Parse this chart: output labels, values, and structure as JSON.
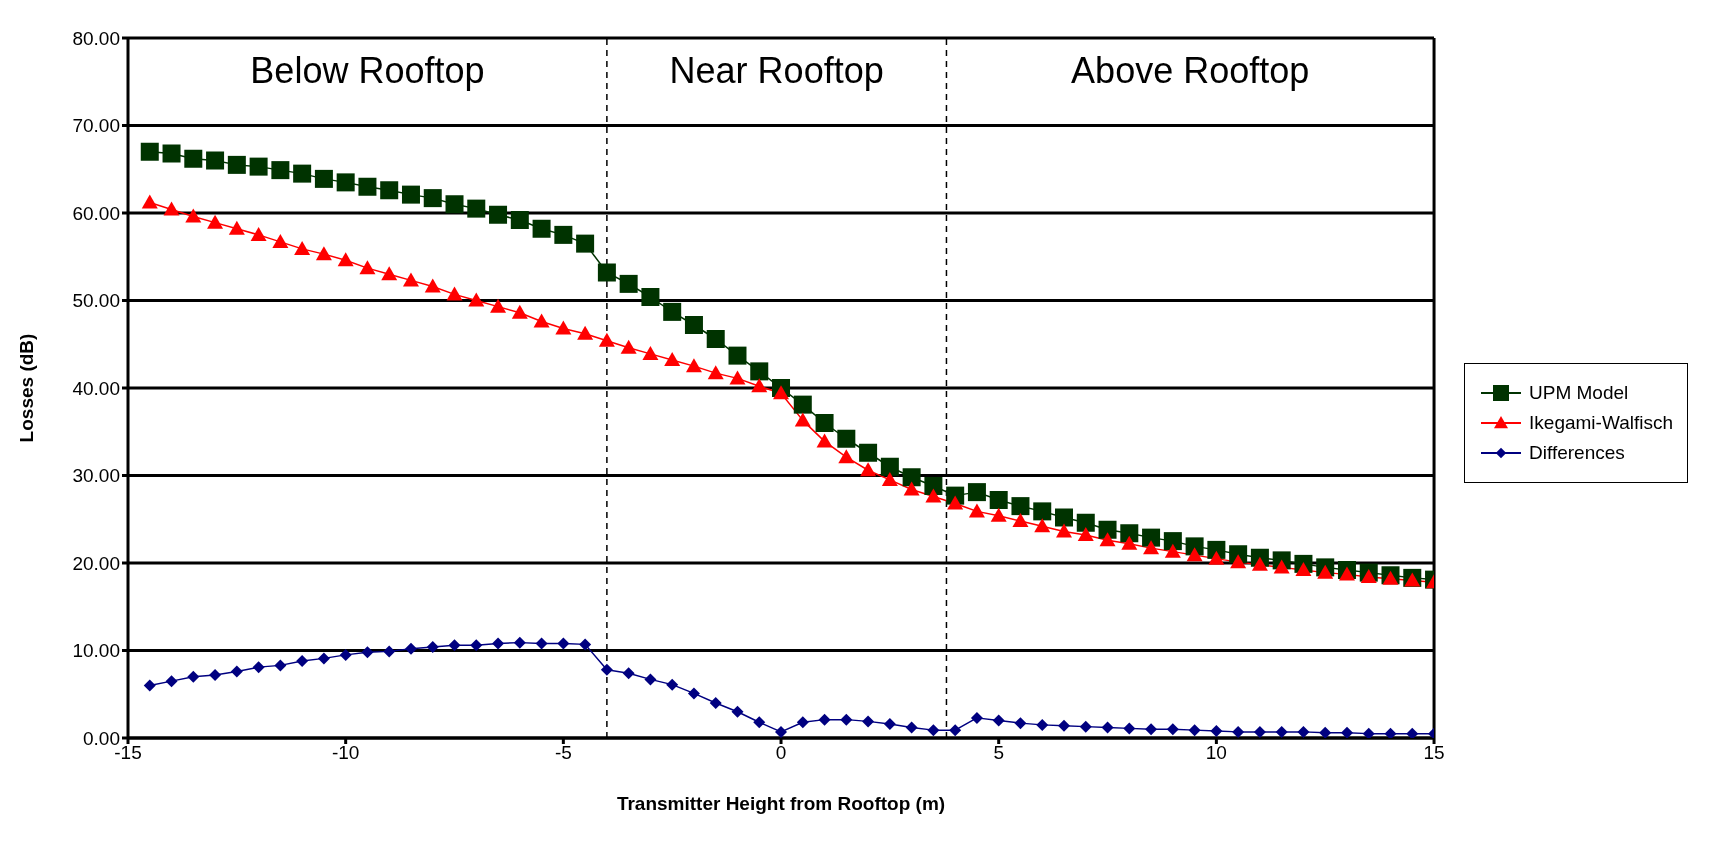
{
  "chart_data": {
    "type": "line",
    "xlabel": "Transmitter Height from Rooftop (m)",
    "ylabel": "Losses (dB)",
    "x": [
      -14.5,
      -14,
      -13.5,
      -13,
      -12.5,
      -12,
      -11.5,
      -11,
      -10.5,
      -10,
      -9.5,
      -9,
      -8.5,
      -8,
      -7.5,
      -7,
      -6.5,
      -6,
      -5.5,
      -5,
      -4.5,
      -4,
      -3.5,
      -3,
      -2.5,
      -2,
      -1.5,
      -1,
      -0.5,
      0,
      0.5,
      1,
      1.5,
      2,
      2.5,
      3,
      3.5,
      4,
      4.5,
      5,
      5.5,
      6,
      6.5,
      7,
      7.5,
      8,
      8.5,
      9,
      9.5,
      10,
      10.5,
      11,
      11.5,
      12,
      12.5,
      13,
      13.5,
      14,
      14.5,
      15
    ],
    "series": [
      {
        "name": "UPM Model",
        "color": "#003300",
        "marker": "square",
        "values": [
          67.0,
          66.8,
          66.2,
          66.0,
          65.5,
          65.3,
          64.9,
          64.5,
          63.9,
          63.5,
          63.0,
          62.6,
          62.1,
          61.7,
          61.0,
          60.5,
          59.8,
          59.2,
          58.2,
          57.5,
          56.5,
          53.2,
          51.9,
          50.4,
          48.7,
          47.2,
          45.6,
          43.7,
          41.9,
          40.0,
          38.1,
          36.0,
          34.2,
          32.6,
          31.0,
          29.8,
          28.8,
          27.7,
          28.1,
          27.2,
          26.5,
          25.9,
          25.2,
          24.6,
          23.8,
          23.4,
          22.9,
          22.5,
          21.9,
          21.5,
          21.0,
          20.6,
          20.3,
          19.9,
          19.5,
          19.2,
          18.9,
          18.6,
          18.3,
          18.1
        ]
      },
      {
        "name": "Ikegami-Walfisch",
        "color": "#ff0000",
        "marker": "triangle",
        "values": [
          61.2,
          60.4,
          59.6,
          58.9,
          58.2,
          57.5,
          56.7,
          55.9,
          55.3,
          54.6,
          53.7,
          53.0,
          52.3,
          51.6,
          50.7,
          50.0,
          49.3,
          48.6,
          47.6,
          46.8,
          46.2,
          45.4,
          44.6,
          43.9,
          43.2,
          42.5,
          41.7,
          41.1,
          40.2,
          39.4,
          36.3,
          33.9,
          32.1,
          30.6,
          29.5,
          28.4,
          27.6,
          26.8,
          25.9,
          25.4,
          24.8,
          24.2,
          23.6,
          23.2,
          22.6,
          22.2,
          21.7,
          21.3,
          20.9,
          20.5,
          20.1,
          19.8,
          19.5,
          19.2,
          18.9,
          18.7,
          18.4,
          18.2,
          18.0,
          17.8
        ]
      },
      {
        "name": "Differences",
        "color": "#000080",
        "marker": "diamond",
        "values": [
          6.0,
          6.5,
          7.0,
          7.2,
          7.6,
          8.1,
          8.3,
          8.8,
          9.1,
          9.5,
          9.8,
          9.9,
          10.2,
          10.4,
          10.6,
          10.6,
          10.8,
          10.9,
          10.8,
          10.8,
          10.7,
          7.8,
          7.4,
          6.7,
          6.1,
          5.1,
          4.0,
          3.0,
          1.8,
          0.7,
          1.8,
          2.1,
          2.1,
          1.9,
          1.6,
          1.2,
          0.9,
          0.9,
          2.3,
          2.0,
          1.7,
          1.5,
          1.4,
          1.3,
          1.2,
          1.1,
          1.0,
          1.0,
          0.9,
          0.8,
          0.7,
          0.7,
          0.7,
          0.7,
          0.6,
          0.6,
          0.5,
          0.5,
          0.5,
          0.5
        ]
      }
    ],
    "xlim": [
      -15,
      15
    ],
    "xticks": [
      -15,
      -10,
      -5,
      0,
      5,
      10,
      15
    ],
    "ylim": [
      0,
      80
    ],
    "yticks": [
      {
        "value": 0,
        "label": "0.00"
      },
      {
        "value": 10,
        "label": "10.00"
      },
      {
        "value": 20,
        "label": "20.00"
      },
      {
        "value": 30,
        "label": "30.00"
      },
      {
        "value": 40,
        "label": "40.00"
      },
      {
        "value": 50,
        "label": "50.00"
      },
      {
        "value": 60,
        "label": "60.00"
      },
      {
        "value": 70,
        "label": "70.00"
      },
      {
        "value": 80,
        "label": "80.00"
      }
    ],
    "grid": "y",
    "legend": "right",
    "line_style": "solid",
    "ref_lines": [
      {
        "axis": "x",
        "value": -4,
        "label": null,
        "color": "#000000",
        "line_style": "dashed"
      },
      {
        "axis": "x",
        "value": 3.8,
        "label": null,
        "color": "#000000",
        "line_style": "dashed"
      }
    ],
    "annotations": [
      "Below Rooftop",
      "Near Rooftop",
      "Above Rooftop"
    ]
  }
}
